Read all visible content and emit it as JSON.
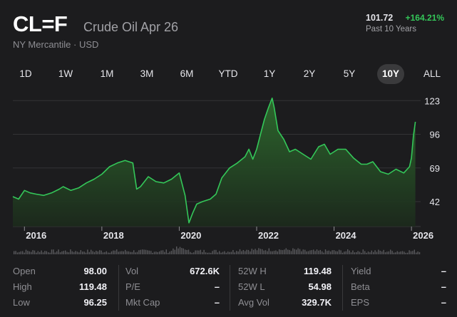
{
  "header": {
    "symbol": "CL=F",
    "name": "Crude Oil Apr 26",
    "exchange": "NY Mercantile · USD",
    "price": "101.72",
    "change": "+164.21%",
    "period": "Past 10 Years"
  },
  "ranges": [
    "1D",
    "1W",
    "1M",
    "3M",
    "6M",
    "YTD",
    "1Y",
    "2Y",
    "5Y",
    "10Y",
    "ALL"
  ],
  "active_range": "10Y",
  "colors": {
    "up": "#34c759",
    "bg": "#1c1c1e"
  },
  "chart_data": {
    "type": "area",
    "x_labels": [
      "2016",
      "2018",
      "2020",
      "2022",
      "2024",
      "2026"
    ],
    "y_ticks": [
      123,
      96,
      69,
      42
    ],
    "ylim": [
      22,
      130
    ],
    "xlim": [
      2015.7,
      2026.2
    ],
    "series": [
      {
        "x": [
          2015.7,
          2015.85,
          2016.0,
          2016.15,
          2016.3,
          2016.5,
          2016.7,
          2016.9,
          2017.0,
          2017.2,
          2017.4,
          2017.6,
          2017.8,
          2018.0,
          2018.2,
          2018.4,
          2018.6,
          2018.8,
          2018.9,
          2019.0,
          2019.2,
          2019.4,
          2019.6,
          2019.8,
          2020.0,
          2020.15,
          2020.25,
          2020.35,
          2020.45,
          2020.6,
          2020.8,
          2020.95,
          2021.1,
          2021.3,
          2021.5,
          2021.7,
          2021.8,
          2021.9,
          2022.0,
          2022.1,
          2022.2,
          2022.3,
          2022.4,
          2022.45,
          2022.55,
          2022.7,
          2022.85,
          2023.0,
          2023.2,
          2023.4,
          2023.6,
          2023.75,
          2023.9,
          2024.1,
          2024.3,
          2024.5,
          2024.7,
          2024.85,
          2025.0,
          2025.2,
          2025.4,
          2025.6,
          2025.8,
          2025.95,
          2026.0,
          2026.05,
          2026.1
        ],
        "values": [
          46,
          44,
          51,
          49,
          48,
          47,
          49,
          52,
          54,
          51,
          53,
          57,
          60,
          64,
          70,
          73,
          75,
          73,
          52,
          54,
          62,
          58,
          57,
          60,
          65,
          47,
          25,
          33,
          40,
          42,
          44,
          48,
          61,
          69,
          73,
          78,
          84,
          76,
          84,
          96,
          108,
          117,
          125,
          118,
          99,
          92,
          82,
          84,
          80,
          76,
          86,
          88,
          80,
          84,
          84,
          77,
          72,
          72,
          74,
          66,
          64,
          68,
          65,
          70,
          77,
          95,
          106
        ]
      }
    ]
  },
  "stats": {
    "col1": [
      {
        "label": "Open",
        "value": "98.00"
      },
      {
        "label": "High",
        "value": "119.48"
      },
      {
        "label": "Low",
        "value": "96.25"
      }
    ],
    "col2": [
      {
        "label": "Vol",
        "value": "672.6K"
      },
      {
        "label": "P/E",
        "value": "–"
      },
      {
        "label": "Mkt Cap",
        "value": "–"
      }
    ],
    "col3": [
      {
        "label": "52W H",
        "value": "119.48"
      },
      {
        "label": "52W L",
        "value": "54.98"
      },
      {
        "label": "Avg Vol",
        "value": "329.7K"
      }
    ],
    "col4": [
      {
        "label": "Yield",
        "value": "–"
      },
      {
        "label": "Beta",
        "value": "–"
      },
      {
        "label": "EPS",
        "value": "–"
      }
    ]
  }
}
